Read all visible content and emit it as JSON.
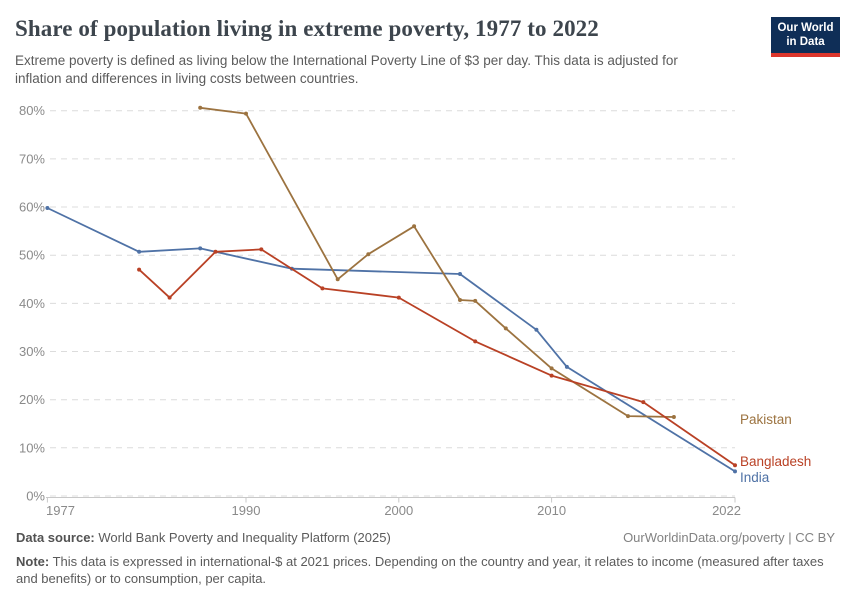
{
  "header": {
    "title": "Share of population living in extreme poverty, 1977 to 2022",
    "subtitle": "Extreme poverty is defined as living below the International Poverty Line of $3 per day. This data is adjusted for inflation and differences in living costs between countries."
  },
  "logo": {
    "line1": "Our World",
    "line2": "in Data"
  },
  "chart_data": {
    "type": "line",
    "title": "Share of population living in extreme poverty, 1977 to 2022",
    "xlabel": "",
    "ylabel": "",
    "xlim": [
      1977,
      2022
    ],
    "ylim": [
      0,
      80
    ],
    "grid": "horizontal-dashed",
    "legend_position": "right-end-labels",
    "xtick_values": [
      1977,
      1990,
      2000,
      2010,
      2022
    ],
    "xtick_labels": [
      "1977",
      "1990",
      "2000",
      "2010",
      "2022"
    ],
    "ytick_values": [
      0,
      10,
      20,
      30,
      40,
      50,
      60,
      70,
      80
    ],
    "ytick_labels": [
      "0%",
      "10%",
      "20%",
      "30%",
      "40%",
      "50%",
      "60%",
      "70%",
      "80%"
    ],
    "series": [
      {
        "name": "India",
        "color": "#4f72a6",
        "points": [
          [
            1977,
            59.8
          ],
          [
            1983,
            50.7
          ],
          [
            1987,
            51.4
          ],
          [
            1993,
            47.2
          ],
          [
            2004,
            46.1
          ],
          [
            2009,
            34.5
          ],
          [
            2011,
            26.8
          ],
          [
            2022,
            5.1
          ]
        ]
      },
      {
        "name": "Pakistan",
        "color": "#9c7340",
        "points": [
          [
            1987,
            80.6
          ],
          [
            1990,
            79.4
          ],
          [
            1996,
            45.0
          ],
          [
            1998,
            50.2
          ],
          [
            2001,
            56.0
          ],
          [
            2004,
            40.7
          ],
          [
            2005,
            40.5
          ],
          [
            2007,
            34.8
          ],
          [
            2010,
            26.5
          ],
          [
            2015,
            16.6
          ],
          [
            2018,
            16.4
          ]
        ]
      },
      {
        "name": "Bangladesh",
        "color": "#b94125",
        "points": [
          [
            1983,
            47.0
          ],
          [
            1985,
            41.2
          ],
          [
            1988,
            50.7
          ],
          [
            1991,
            51.2
          ],
          [
            1995,
            43.1
          ],
          [
            2000,
            41.2
          ],
          [
            2005,
            32.1
          ],
          [
            2010,
            25.0
          ],
          [
            2016,
            19.5
          ],
          [
            2022,
            6.4
          ]
        ]
      }
    ]
  },
  "footer": {
    "source_label": "Data source:",
    "source_text": " World Bank Poverty and Inequality Platform (2025)",
    "credit": "OurWorldinData.org/poverty | CC BY",
    "note_label": "Note:",
    "note_text": " This data is expressed in international-$ at 2021 prices. Depending on the country and year, it relates to income (measured after taxes and benefits) or to consumption, per capita."
  }
}
